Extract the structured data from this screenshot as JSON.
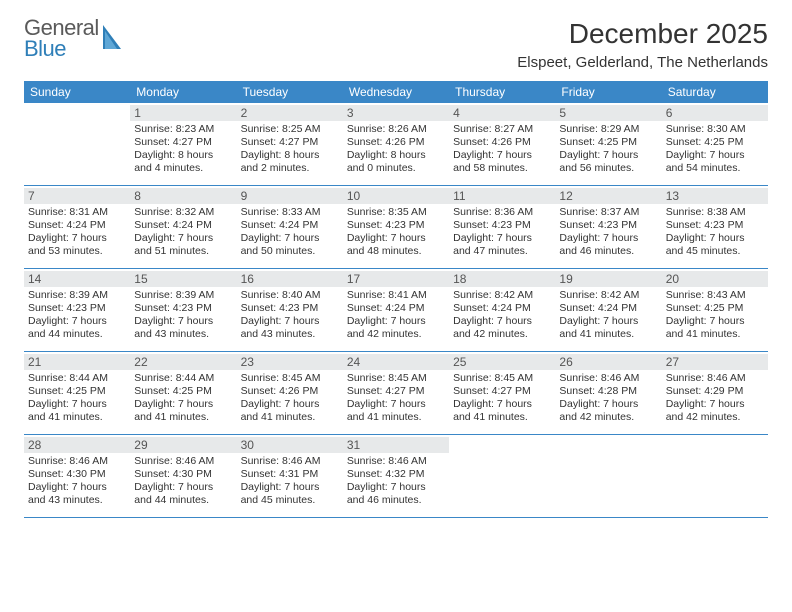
{
  "brand": {
    "general": "General",
    "blue": "Blue"
  },
  "header": {
    "month_title": "December 2025",
    "location": "Elspeet, Gelderland, The Netherlands"
  },
  "style": {
    "header_bg": "#3a87c7",
    "header_fg": "#ffffff",
    "daynum_bg": "#e7e9ea",
    "row_border": "#3a87c7",
    "logo_blue": "#2f7fb8",
    "logo_grey": "#5a5a5a"
  },
  "days_of_week": [
    "Sunday",
    "Monday",
    "Tuesday",
    "Wednesday",
    "Thursday",
    "Friday",
    "Saturday"
  ],
  "weeks": [
    [
      {
        "n": "",
        "sunrise": "",
        "sunset": "",
        "daylight": ""
      },
      {
        "n": "1",
        "sunrise": "Sunrise: 8:23 AM",
        "sunset": "Sunset: 4:27 PM",
        "daylight": "Daylight: 8 hours and 4 minutes."
      },
      {
        "n": "2",
        "sunrise": "Sunrise: 8:25 AM",
        "sunset": "Sunset: 4:27 PM",
        "daylight": "Daylight: 8 hours and 2 minutes."
      },
      {
        "n": "3",
        "sunrise": "Sunrise: 8:26 AM",
        "sunset": "Sunset: 4:26 PM",
        "daylight": "Daylight: 8 hours and 0 minutes."
      },
      {
        "n": "4",
        "sunrise": "Sunrise: 8:27 AM",
        "sunset": "Sunset: 4:26 PM",
        "daylight": "Daylight: 7 hours and 58 minutes."
      },
      {
        "n": "5",
        "sunrise": "Sunrise: 8:29 AM",
        "sunset": "Sunset: 4:25 PM",
        "daylight": "Daylight: 7 hours and 56 minutes."
      },
      {
        "n": "6",
        "sunrise": "Sunrise: 8:30 AM",
        "sunset": "Sunset: 4:25 PM",
        "daylight": "Daylight: 7 hours and 54 minutes."
      }
    ],
    [
      {
        "n": "7",
        "sunrise": "Sunrise: 8:31 AM",
        "sunset": "Sunset: 4:24 PM",
        "daylight": "Daylight: 7 hours and 53 minutes."
      },
      {
        "n": "8",
        "sunrise": "Sunrise: 8:32 AM",
        "sunset": "Sunset: 4:24 PM",
        "daylight": "Daylight: 7 hours and 51 minutes."
      },
      {
        "n": "9",
        "sunrise": "Sunrise: 8:33 AM",
        "sunset": "Sunset: 4:24 PM",
        "daylight": "Daylight: 7 hours and 50 minutes."
      },
      {
        "n": "10",
        "sunrise": "Sunrise: 8:35 AM",
        "sunset": "Sunset: 4:23 PM",
        "daylight": "Daylight: 7 hours and 48 minutes."
      },
      {
        "n": "11",
        "sunrise": "Sunrise: 8:36 AM",
        "sunset": "Sunset: 4:23 PM",
        "daylight": "Daylight: 7 hours and 47 minutes."
      },
      {
        "n": "12",
        "sunrise": "Sunrise: 8:37 AM",
        "sunset": "Sunset: 4:23 PM",
        "daylight": "Daylight: 7 hours and 46 minutes."
      },
      {
        "n": "13",
        "sunrise": "Sunrise: 8:38 AM",
        "sunset": "Sunset: 4:23 PM",
        "daylight": "Daylight: 7 hours and 45 minutes."
      }
    ],
    [
      {
        "n": "14",
        "sunrise": "Sunrise: 8:39 AM",
        "sunset": "Sunset: 4:23 PM",
        "daylight": "Daylight: 7 hours and 44 minutes."
      },
      {
        "n": "15",
        "sunrise": "Sunrise: 8:39 AM",
        "sunset": "Sunset: 4:23 PM",
        "daylight": "Daylight: 7 hours and 43 minutes."
      },
      {
        "n": "16",
        "sunrise": "Sunrise: 8:40 AM",
        "sunset": "Sunset: 4:23 PM",
        "daylight": "Daylight: 7 hours and 43 minutes."
      },
      {
        "n": "17",
        "sunrise": "Sunrise: 8:41 AM",
        "sunset": "Sunset: 4:24 PM",
        "daylight": "Daylight: 7 hours and 42 minutes."
      },
      {
        "n": "18",
        "sunrise": "Sunrise: 8:42 AM",
        "sunset": "Sunset: 4:24 PM",
        "daylight": "Daylight: 7 hours and 42 minutes."
      },
      {
        "n": "19",
        "sunrise": "Sunrise: 8:42 AM",
        "sunset": "Sunset: 4:24 PM",
        "daylight": "Daylight: 7 hours and 41 minutes."
      },
      {
        "n": "20",
        "sunrise": "Sunrise: 8:43 AM",
        "sunset": "Sunset: 4:25 PM",
        "daylight": "Daylight: 7 hours and 41 minutes."
      }
    ],
    [
      {
        "n": "21",
        "sunrise": "Sunrise: 8:44 AM",
        "sunset": "Sunset: 4:25 PM",
        "daylight": "Daylight: 7 hours and 41 minutes."
      },
      {
        "n": "22",
        "sunrise": "Sunrise: 8:44 AM",
        "sunset": "Sunset: 4:25 PM",
        "daylight": "Daylight: 7 hours and 41 minutes."
      },
      {
        "n": "23",
        "sunrise": "Sunrise: 8:45 AM",
        "sunset": "Sunset: 4:26 PM",
        "daylight": "Daylight: 7 hours and 41 minutes."
      },
      {
        "n": "24",
        "sunrise": "Sunrise: 8:45 AM",
        "sunset": "Sunset: 4:27 PM",
        "daylight": "Daylight: 7 hours and 41 minutes."
      },
      {
        "n": "25",
        "sunrise": "Sunrise: 8:45 AM",
        "sunset": "Sunset: 4:27 PM",
        "daylight": "Daylight: 7 hours and 41 minutes."
      },
      {
        "n": "26",
        "sunrise": "Sunrise: 8:46 AM",
        "sunset": "Sunset: 4:28 PM",
        "daylight": "Daylight: 7 hours and 42 minutes."
      },
      {
        "n": "27",
        "sunrise": "Sunrise: 8:46 AM",
        "sunset": "Sunset: 4:29 PM",
        "daylight": "Daylight: 7 hours and 42 minutes."
      }
    ],
    [
      {
        "n": "28",
        "sunrise": "Sunrise: 8:46 AM",
        "sunset": "Sunset: 4:30 PM",
        "daylight": "Daylight: 7 hours and 43 minutes."
      },
      {
        "n": "29",
        "sunrise": "Sunrise: 8:46 AM",
        "sunset": "Sunset: 4:30 PM",
        "daylight": "Daylight: 7 hours and 44 minutes."
      },
      {
        "n": "30",
        "sunrise": "Sunrise: 8:46 AM",
        "sunset": "Sunset: 4:31 PM",
        "daylight": "Daylight: 7 hours and 45 minutes."
      },
      {
        "n": "31",
        "sunrise": "Sunrise: 8:46 AM",
        "sunset": "Sunset: 4:32 PM",
        "daylight": "Daylight: 7 hours and 46 minutes."
      },
      {
        "n": "",
        "sunrise": "",
        "sunset": "",
        "daylight": ""
      },
      {
        "n": "",
        "sunrise": "",
        "sunset": "",
        "daylight": ""
      },
      {
        "n": "",
        "sunrise": "",
        "sunset": "",
        "daylight": ""
      }
    ]
  ]
}
